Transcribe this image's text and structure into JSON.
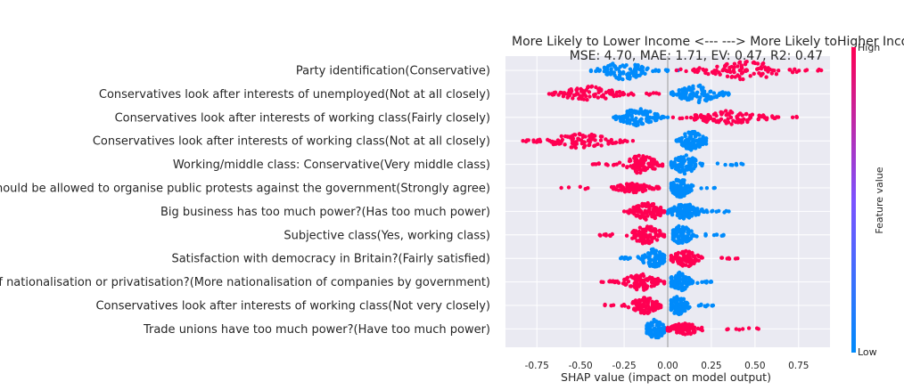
{
  "chart_data": {
    "type": "scatter",
    "subtype": "shap-beeswarm",
    "title": "More Likely to Lower Income <---   ---> More Likely toHigher Income",
    "subtitle": "MSE: 4.70, MAE: 1.71, EV: 0.47, R2: 0.47",
    "xlabel": "SHAP value (impact on model output)",
    "xlim": [
      -0.93,
      0.93
    ],
    "xticks": [
      "-0.75",
      "-0.50",
      "-0.25",
      "0.00",
      "0.25",
      "0.50",
      "0.75"
    ],
    "xtick_values": [
      -0.75,
      -0.5,
      -0.25,
      0,
      0.25,
      0.5,
      0.75
    ],
    "grid": true,
    "colorbar": {
      "label": "Feature value",
      "high": "High",
      "low": "Low"
    },
    "colors": {
      "high": "#ff0052",
      "low": "#008bfb",
      "mid": "#7c52ff",
      "background": "#eaeaf2"
    },
    "features": [
      {
        "name": "Party identification(Conservative)",
        "high": {
          "min": 0.05,
          "max": 0.88,
          "center": 0.45,
          "peak": 1.0
        },
        "low": {
          "min": -0.44,
          "max": 0.06,
          "center": -0.25,
          "peak": 1.0
        }
      },
      {
        "name": "Conservatives look after interests of unemployed(Not at all closely)",
        "high": {
          "min": -0.68,
          "max": -0.05,
          "center": -0.45,
          "peak": 0.8
        },
        "low": {
          "min": 0.02,
          "max": 0.35,
          "center": 0.17,
          "peak": 1.0
        }
      },
      {
        "name": "Conservatives look after interests of working class(Fairly closely)",
        "high": {
          "min": 0.03,
          "max": 0.74,
          "center": 0.35,
          "peak": 0.75
        },
        "low": {
          "min": -0.31,
          "max": 0.0,
          "center": -0.17,
          "peak": 1.0
        }
      },
      {
        "name": "Conservatives look after interests of working class(Not at all closely)",
        "high": {
          "min": -0.83,
          "max": -0.2,
          "center": -0.5,
          "peak": 0.75
        },
        "low": {
          "min": 0.05,
          "max": 0.22,
          "center": 0.14,
          "peak": 1.0
        }
      },
      {
        "name": "Working/middle class: Conservative(Very middle class)",
        "high": {
          "min": -0.43,
          "max": -0.03,
          "center": -0.15,
          "peak": 1.0
        },
        "low": {
          "min": 0.02,
          "max": 0.43,
          "center": 0.1,
          "peak": 1.0
        }
      },
      {
        "name": "People should be allowed to organise public protests against the government(Strongly agree)",
        "high": {
          "min": -0.61,
          "max": -0.05,
          "center": -0.2,
          "peak": 0.45
        },
        "low": {
          "min": 0.02,
          "max": 0.27,
          "center": 0.07,
          "peak": 1.0
        }
      },
      {
        "name": "Big business has too much power?(Has too much power)",
        "high": {
          "min": -0.25,
          "max": -0.02,
          "center": -0.12,
          "peak": 1.0
        },
        "low": {
          "min": 0.0,
          "max": 0.35,
          "center": 0.1,
          "peak": 0.8
        }
      },
      {
        "name": "Subjective class(Yes, working class)",
        "high": {
          "min": -0.39,
          "max": -0.02,
          "center": -0.12,
          "peak": 1.0
        },
        "low": {
          "min": 0.03,
          "max": 0.32,
          "center": 0.08,
          "peak": 1.0
        }
      },
      {
        "name": "Satisfaction with democracy in Britain?(Fairly satisfied)",
        "high": {
          "min": 0.02,
          "max": 0.4,
          "center": 0.1,
          "peak": 0.9
        },
        "low": {
          "min": -0.27,
          "max": -0.02,
          "center": -0.08,
          "peak": 1.0
        }
      },
      {
        "name": "In favour of nationalisation or privatisation?(More nationalisation of companies by government)",
        "high": {
          "min": -0.38,
          "max": -0.02,
          "center": -0.15,
          "peak": 0.9
        },
        "low": {
          "min": 0.02,
          "max": 0.25,
          "center": 0.07,
          "peak": 1.0
        }
      },
      {
        "name": "Conservatives look after interests of working class(Not very closely)",
        "high": {
          "min": -0.36,
          "max": -0.04,
          "center": -0.13,
          "peak": 0.85
        },
        "low": {
          "min": 0.02,
          "max": 0.26,
          "center": 0.06,
          "peak": 1.0
        }
      },
      {
        "name": "Trade unions have too much power?(Have too much power)",
        "high": {
          "min": 0.0,
          "max": 0.52,
          "center": 0.1,
          "peak": 0.6
        },
        "low": {
          "min": -0.12,
          "max": -0.02,
          "center": -0.07,
          "peak": 1.0
        }
      }
    ]
  }
}
